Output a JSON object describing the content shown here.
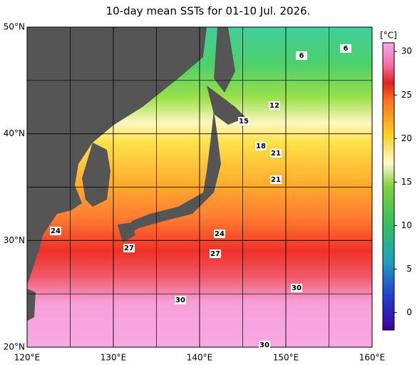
{
  "map": {
    "title": "10-day mean SSTs for 01-10 Jul. 2026.",
    "xlim": [
      120,
      160
    ],
    "ylim": [
      20,
      50
    ],
    "xticks": [
      {
        "value": 120,
        "label": "120°E"
      },
      {
        "value": 130,
        "label": "130°E"
      },
      {
        "value": 140,
        "label": "140°E"
      },
      {
        "value": 150,
        "label": "150°E"
      },
      {
        "value": 160,
        "label": "160°E"
      }
    ],
    "yticks": [
      {
        "value": 20,
        "label": "20°N"
      },
      {
        "value": 30,
        "label": "30°N"
      },
      {
        "value": 40,
        "label": "40°N"
      },
      {
        "value": 50,
        "label": "50°N"
      }
    ],
    "colorbar": {
      "label": "[°C]",
      "lim": [
        -2,
        31
      ],
      "ticks": [
        0,
        5,
        10,
        15,
        20,
        25,
        30
      ]
    },
    "contour_labels": [
      6,
      6,
      12,
      15,
      18,
      21,
      21,
      24,
      24,
      27,
      27,
      30,
      30,
      30
    ]
  }
}
